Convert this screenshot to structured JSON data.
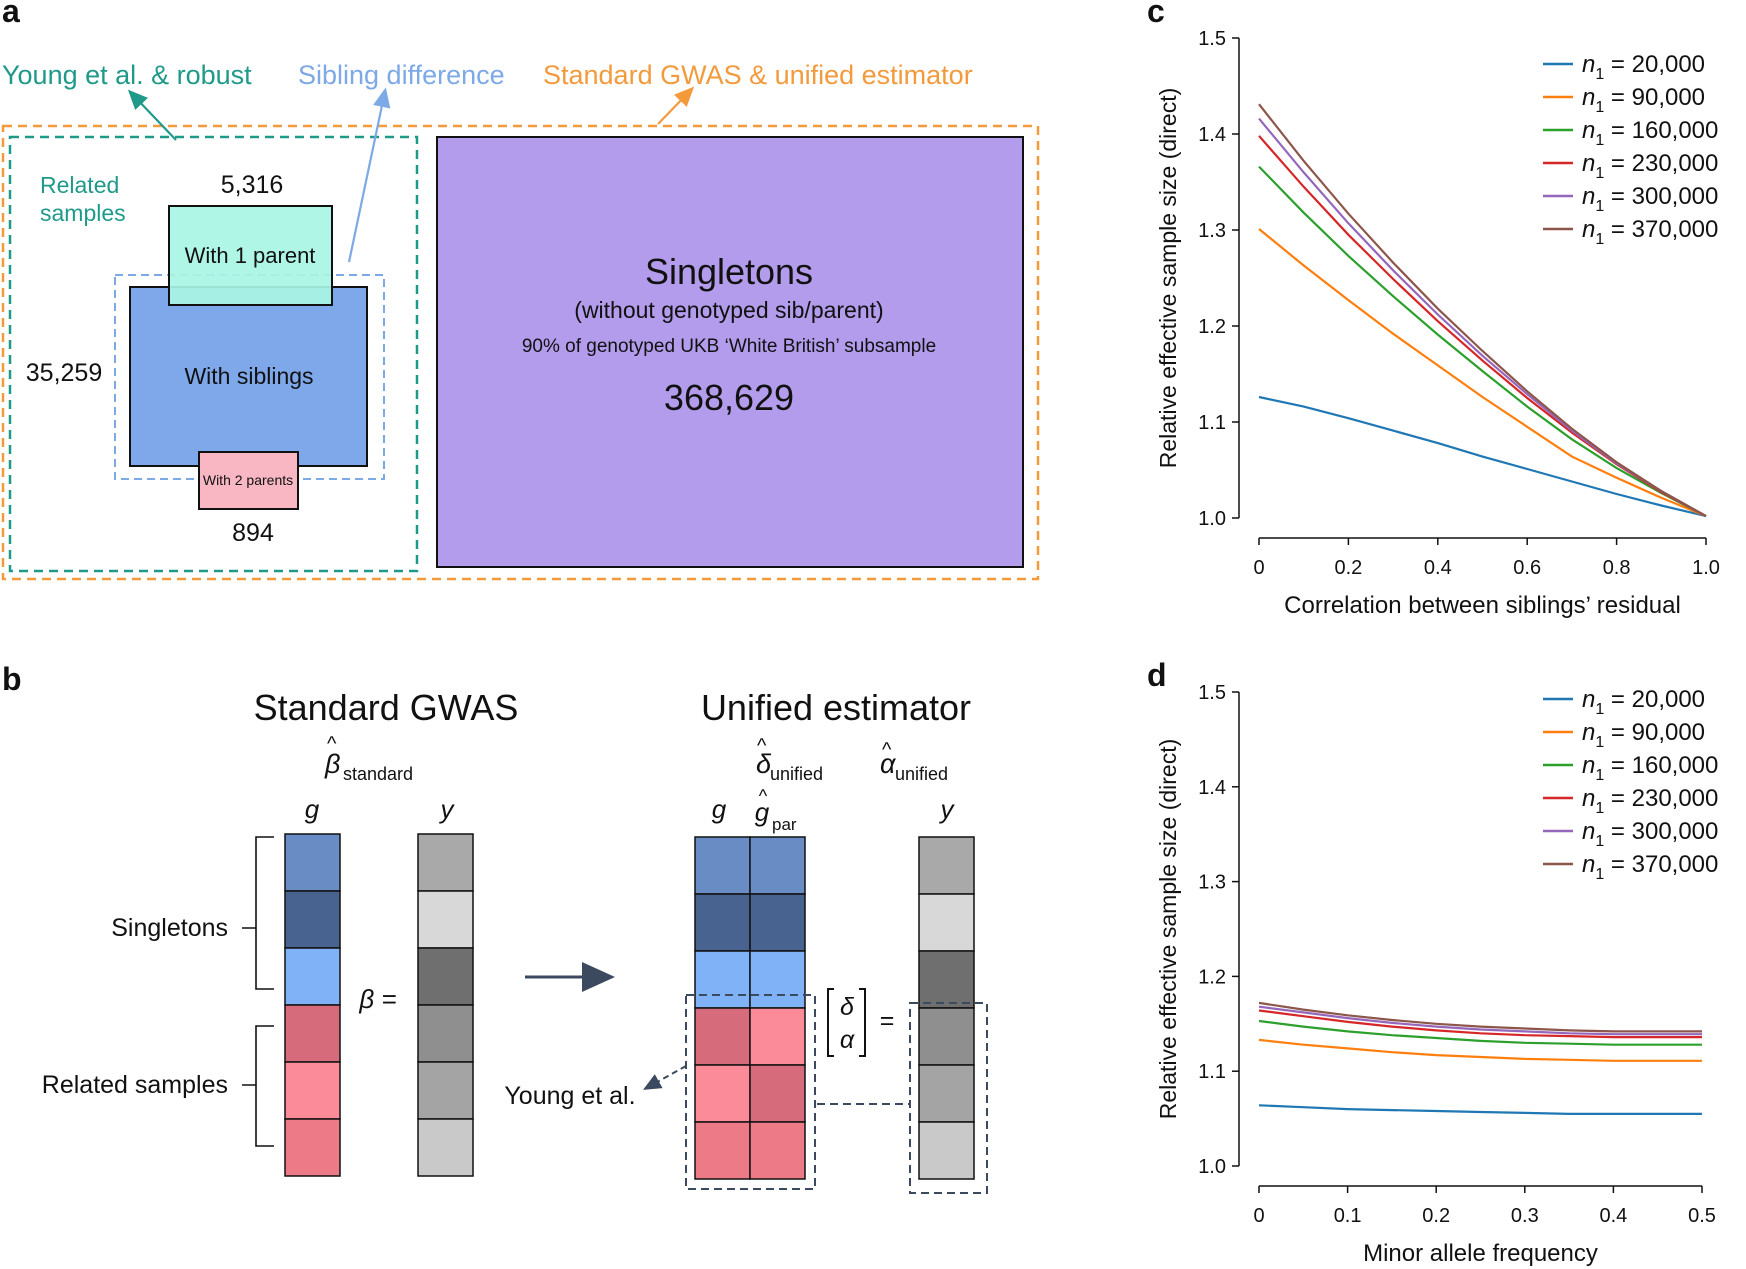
{
  "panels": {
    "a": "a",
    "b": "b",
    "c": "c",
    "d": "d"
  },
  "panel_a": {
    "label_young": "Young et al. & robust",
    "label_sibdiff": "Sibling difference",
    "label_standard": "Standard GWAS & unified estimator",
    "related_line1": "Related",
    "related_line2": "samples",
    "count_one_parent": "5,316",
    "box_one_parent": "With 1 parent",
    "count_siblings": "35,259",
    "box_siblings": "With siblings",
    "box_two_parents": "With 2 parents",
    "count_two_parents": "894",
    "singletons_title": "Singletons",
    "singletons_sub": "(without genotyped sib/parent)",
    "singletons_desc": "90% of genotyped UKB ‘White British’ subsample",
    "singletons_count": "368,629",
    "colors": {
      "teal": "#1f9a8a",
      "blue": "#7da9e6",
      "orange": "#f39a3c",
      "purple": "#b39ceb",
      "sib": "#7ea8ea",
      "one_parent": "#a8f5e4",
      "two_parents": "#f9b7c3"
    }
  },
  "panel_b": {
    "title_standard": "Standard GWAS",
    "beta_hat": "β",
    "sub_standard": "standard",
    "title_unified": "Unified estimator",
    "delta_hat": "δ",
    "alpha_hat": "α",
    "sub_unified": "unified",
    "col_g": "g",
    "col_y": "y",
    "col_gpar": "g",
    "sub_par": "par",
    "row_singletons": "Singletons",
    "row_related": "Related samples",
    "beta_eq": "β =",
    "vec_delta": "δ",
    "vec_alpha": "α",
    "equals": "=",
    "young_label": "Young et al.",
    "g_colors": [
      "#6a8cc4",
      "#48638f",
      "#80b2f8",
      "#d66c7b",
      "#fb8b99",
      "#ec7a87"
    ],
    "gpar_colors": [
      "#6a8cc4",
      "#48638f",
      "#80b2f8",
      "#fb8b99",
      "#d66c7b",
      "#ec7a87"
    ],
    "y_colors": [
      "#a9a9a9",
      "#d8d8d8",
      "#6f6f6f",
      "#8f8f8f",
      "#a4a4a4",
      "#c9c9c9"
    ]
  },
  "chart_data": [
    {
      "type": "line",
      "id": "c",
      "title": "",
      "xlabel": "Correlation between siblings’ residual",
      "ylabel": "Relative effective sample size (direct)",
      "xlim": [
        0,
        1.0
      ],
      "ylim": [
        1.0,
        1.5
      ],
      "xticks": [
        0,
        0.2,
        0.4,
        0.6,
        0.8,
        1.0
      ],
      "xtick_labels": [
        "0",
        "0.2",
        "0.4",
        "0.6",
        "0.8",
        "1.0"
      ],
      "yticks": [
        1.0,
        1.1,
        1.2,
        1.3,
        1.4,
        1.5
      ],
      "ytick_labels": [
        "1.0",
        "1.1",
        "1.2",
        "1.3",
        "1.4",
        "1.5"
      ],
      "x": [
        0,
        0.1,
        0.2,
        0.3,
        0.4,
        0.5,
        0.6,
        0.7,
        0.8,
        0.9,
        1.0
      ],
      "legend_position": "top-right",
      "series": [
        {
          "name": "n",
          "sub": "1",
          "value": " = 20,000",
          "color": "#1f77b4",
          "values": [
            1.126,
            1.116,
            1.104,
            1.091,
            1.078,
            1.064,
            1.051,
            1.038,
            1.025,
            1.013,
            1.002
          ]
        },
        {
          "name": "n",
          "sub": "1",
          "value": " = 90,000",
          "color": "#ff7f0e",
          "values": [
            1.301,
            1.263,
            1.227,
            1.192,
            1.159,
            1.126,
            1.095,
            1.064,
            1.042,
            1.021,
            1.002
          ]
        },
        {
          "name": "n",
          "sub": "1",
          "value": " = 160,000",
          "color": "#2ca02c",
          "values": [
            1.366,
            1.318,
            1.273,
            1.231,
            1.191,
            1.153,
            1.116,
            1.082,
            1.052,
            1.026,
            1.002
          ]
        },
        {
          "name": "n",
          "sub": "1",
          "value": " = 230,000",
          "color": "#d62728",
          "values": [
            1.398,
            1.345,
            1.295,
            1.249,
            1.205,
            1.164,
            1.125,
            1.089,
            1.056,
            1.027,
            1.002
          ]
        },
        {
          "name": "n",
          "sub": "1",
          "value": " = 300,000",
          "color": "#9467bd",
          "values": [
            1.416,
            1.36,
            1.307,
            1.258,
            1.212,
            1.169,
            1.129,
            1.091,
            1.057,
            1.028,
            1.002
          ]
        },
        {
          "name": "n",
          "sub": "1",
          "value": " = 370,000",
          "color": "#8c564b",
          "values": [
            1.431,
            1.372,
            1.317,
            1.266,
            1.218,
            1.174,
            1.132,
            1.093,
            1.058,
            1.028,
            1.002
          ]
        }
      ]
    },
    {
      "type": "line",
      "id": "d",
      "title": "",
      "xlabel": "Minor allele frequency",
      "ylabel": "Relative effective sample size (direct)",
      "xlim": [
        0,
        0.5
      ],
      "ylim": [
        1.0,
        1.5
      ],
      "xticks": [
        0,
        0.1,
        0.2,
        0.3,
        0.4,
        0.5
      ],
      "xtick_labels": [
        "0",
        "0.1",
        "0.2",
        "0.3",
        "0.4",
        "0.5"
      ],
      "yticks": [
        1.0,
        1.1,
        1.2,
        1.3,
        1.4,
        1.5
      ],
      "ytick_labels": [
        "1.0",
        "1.1",
        "1.2",
        "1.3",
        "1.4",
        "1.5"
      ],
      "x": [
        0,
        0.05,
        0.1,
        0.15,
        0.2,
        0.25,
        0.3,
        0.35,
        0.4,
        0.45,
        0.5
      ],
      "legend_position": "top-right",
      "series": [
        {
          "name": "n",
          "sub": "1",
          "value": " = 20,000",
          "color": "#1f77b4",
          "values": [
            1.064,
            1.062,
            1.06,
            1.059,
            1.058,
            1.057,
            1.056,
            1.055,
            1.055,
            1.055,
            1.055
          ]
        },
        {
          "name": "n",
          "sub": "1",
          "value": " = 90,000",
          "color": "#ff7f0e",
          "values": [
            1.133,
            1.128,
            1.124,
            1.12,
            1.117,
            1.115,
            1.113,
            1.112,
            1.111,
            1.111,
            1.111
          ]
        },
        {
          "name": "n",
          "sub": "1",
          "value": " = 160,000",
          "color": "#2ca02c",
          "values": [
            1.153,
            1.147,
            1.142,
            1.138,
            1.135,
            1.132,
            1.13,
            1.129,
            1.128,
            1.128,
            1.128
          ]
        },
        {
          "name": "n",
          "sub": "1",
          "value": " = 230,000",
          "color": "#d62728",
          "values": [
            1.164,
            1.158,
            1.152,
            1.147,
            1.143,
            1.14,
            1.138,
            1.137,
            1.136,
            1.136,
            1.136
          ]
        },
        {
          "name": "n",
          "sub": "1",
          "value": " = 300,000",
          "color": "#9467bd",
          "values": [
            1.168,
            1.162,
            1.156,
            1.151,
            1.147,
            1.144,
            1.142,
            1.14,
            1.139,
            1.139,
            1.139
          ]
        },
        {
          "name": "n",
          "sub": "1",
          "value": " = 370,000",
          "color": "#8c564b",
          "values": [
            1.172,
            1.165,
            1.159,
            1.154,
            1.15,
            1.147,
            1.145,
            1.143,
            1.142,
            1.142,
            1.142
          ]
        }
      ]
    }
  ]
}
